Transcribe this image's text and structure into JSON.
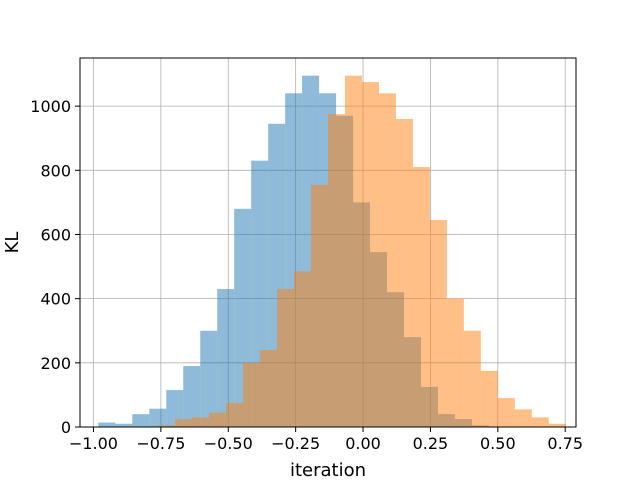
{
  "chart_data": {
    "type": "bar",
    "title": "",
    "xlabel": "iteration",
    "ylabel": "KL",
    "xlim": [
      -1.05,
      0.79
    ],
    "ylim": [
      0,
      1150
    ],
    "grid": true,
    "xticks": [
      -1.0,
      -0.75,
      -0.5,
      -0.25,
      0.0,
      0.25,
      0.5,
      0.75
    ],
    "xtick_labels": [
      "−1.00",
      "−0.75",
      "−0.50",
      "−0.25",
      "0.00",
      "0.25",
      "0.50",
      "0.75"
    ],
    "yticks": [
      0,
      200,
      400,
      600,
      800,
      1000
    ],
    "ytick_labels": [
      "0",
      "200",
      "400",
      "600",
      "800",
      "1000"
    ],
    "series": [
      {
        "color": "#1f77b4",
        "opacity": 0.5,
        "bin_edges": [
          -0.982,
          -0.919,
          -0.856,
          -0.793,
          -0.73,
          -0.667,
          -0.604,
          -0.541,
          -0.478,
          -0.415,
          -0.352,
          -0.289,
          -0.226,
          -0.163,
          -0.1,
          -0.037,
          0.026,
          0.089,
          0.152,
          0.215,
          0.278,
          0.341,
          0.404,
          0.467
        ],
        "counts": [
          14,
          10,
          40,
          57,
          115,
          190,
          300,
          430,
          680,
          830,
          945,
          1040,
          1095,
          1040,
          970,
          700,
          545,
          420,
          280,
          125,
          40,
          25,
          5
        ]
      },
      {
        "color": "#ff7f0e",
        "opacity": 0.5,
        "bin_edges": [
          -0.76,
          -0.697,
          -0.634,
          -0.571,
          -0.508,
          -0.445,
          -0.382,
          -0.319,
          -0.256,
          -0.193,
          -0.13,
          -0.067,
          -0.004,
          0.059,
          0.122,
          0.185,
          0.248,
          0.311,
          0.374,
          0.437,
          0.5,
          0.563,
          0.626,
          0.689,
          0.752
        ],
        "counts": [
          5,
          25,
          30,
          45,
          75,
          200,
          240,
          430,
          485,
          755,
          975,
          1095,
          1075,
          1040,
          960,
          810,
          645,
          400,
          300,
          175,
          90,
          55,
          30,
          10
        ]
      }
    ]
  }
}
